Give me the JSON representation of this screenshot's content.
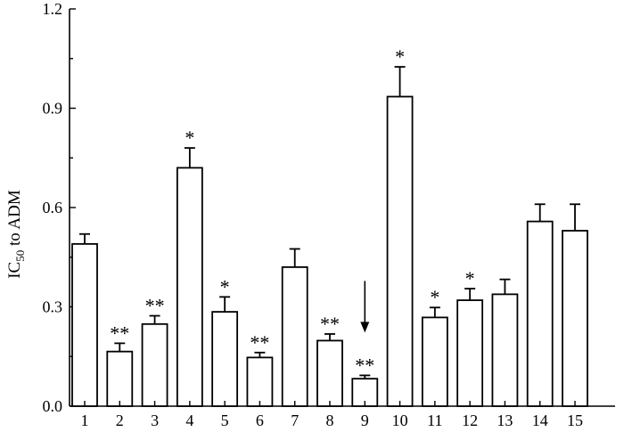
{
  "chart_data": {
    "type": "bar",
    "title": "",
    "xlabel": "",
    "ylabel": "IC",
    "ylabel_subscript": "50",
    "ylabel_suffix": " to ADM",
    "ylim": [
      0.0,
      1.2
    ],
    "yticks": [
      0.0,
      0.3,
      0.6,
      0.9,
      1.2
    ],
    "ytick_labels": [
      "0.0",
      "0.3",
      "0.6",
      "0.9",
      "1.2"
    ],
    "categories": [
      "1",
      "2",
      "3",
      "4",
      "5",
      "6",
      "7",
      "8",
      "9",
      "10",
      "11",
      "12",
      "13",
      "14",
      "15"
    ],
    "values": [
      0.49,
      0.165,
      0.248,
      0.72,
      0.285,
      0.147,
      0.42,
      0.198,
      0.083,
      0.935,
      0.268,
      0.32,
      0.338,
      0.558,
      0.53
    ],
    "errors": [
      0.03,
      0.025,
      0.025,
      0.06,
      0.045,
      0.015,
      0.055,
      0.02,
      0.01,
      0.09,
      0.03,
      0.035,
      0.045,
      0.052,
      0.08
    ],
    "significance": [
      "",
      "**",
      "**",
      "*",
      "*",
      "**",
      "",
      "**",
      "**",
      "*",
      "*",
      "*",
      "",
      "",
      ""
    ],
    "arrow_index": 8,
    "grid": false,
    "legend": "none"
  }
}
